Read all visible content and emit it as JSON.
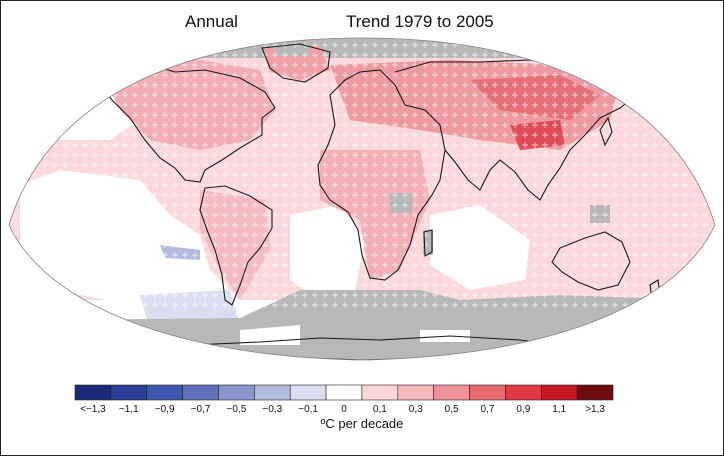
{
  "title_left": "Annual",
  "title_right": "Trend 1979 to 2005",
  "legend": {
    "unit_label": "ºC per decade",
    "ticks": [
      "<−1,3",
      "−1,1",
      "−0,9",
      "−0,7",
      "−0,5",
      "−0,3",
      "−0,1",
      "0",
      "0,1",
      "0,3",
      "0,5",
      "0,7",
      "0,9",
      "1,1",
      ">1,3"
    ],
    "colors": [
      "#1b2a78",
      "#2b3e98",
      "#3f56b0",
      "#6170bc",
      "#8a96cc",
      "#b4bbe0",
      "#dadef0",
      "#ffffff",
      "#fbd7da",
      "#f5b8bd",
      "#ef939b",
      "#e8686f",
      "#df3a43",
      "#c51a22",
      "#6e0d10"
    ]
  },
  "map": {
    "colors": {
      "no_data": "#b8b8b8",
      "ocean_white": "#ffffff",
      "land_outline": "#1a1a1a",
      "significant_marker": "#ffffff"
    }
  }
}
